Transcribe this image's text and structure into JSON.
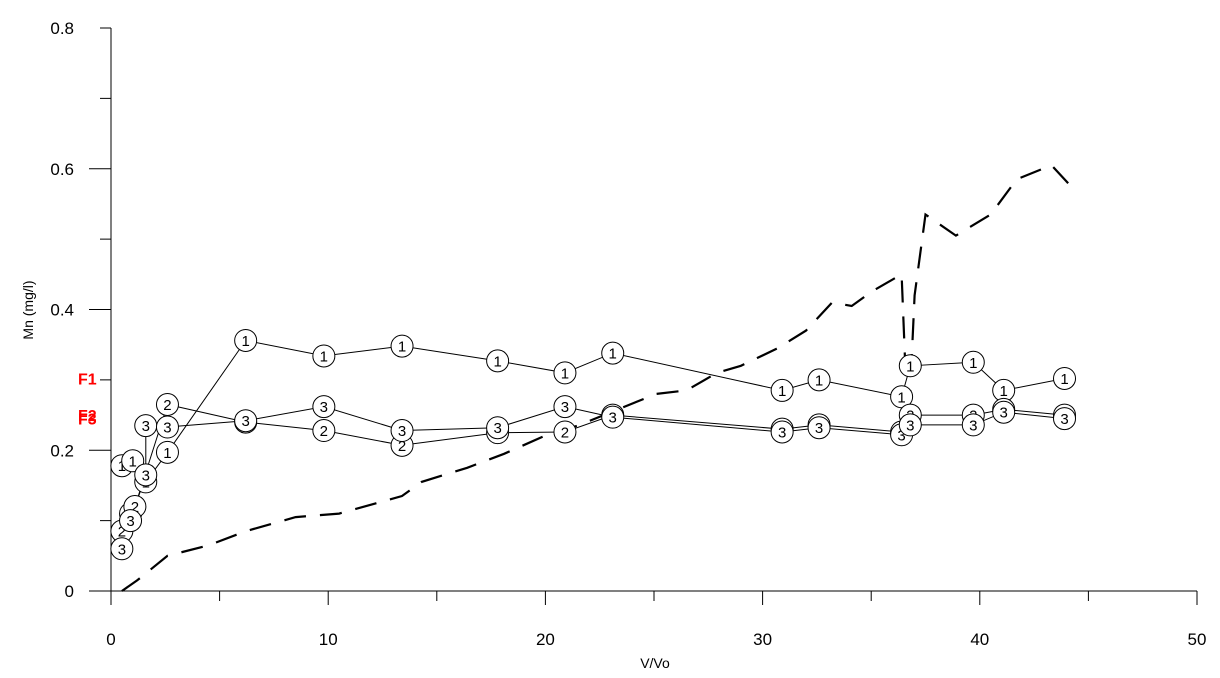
{
  "chart_data": {
    "type": "line",
    "title": "",
    "xlabel": "V/Vo",
    "ylabel": "Mn (mg/l)",
    "xlim": [
      0,
      50
    ],
    "ylim": [
      0,
      0.8
    ],
    "x_ticks": [
      0,
      10,
      20,
      30,
      40,
      50
    ],
    "y_ticks": [
      0,
      0.2,
      0.4,
      0.6,
      0.8
    ],
    "x_tick_labels": [
      "0",
      "10",
      "20",
      "30",
      "40",
      "50"
    ],
    "y_tick_labels": [
      "0",
      "0.2",
      "0.4",
      "0.6",
      "0.8"
    ],
    "grid": false,
    "series": [
      {
        "name": "F1",
        "marker": "1",
        "color": "#000000",
        "label_color": "#ff0000",
        "line_style": "solid",
        "points": [
          [
            0.5,
            0.178
          ],
          [
            1.0,
            0.185
          ],
          [
            1.6,
            0.155
          ],
          [
            2.6,
            0.197
          ],
          [
            6.2,
            0.356
          ],
          [
            9.8,
            0.334
          ],
          [
            13.4,
            0.348
          ],
          [
            17.8,
            0.327
          ],
          [
            20.9,
            0.31
          ],
          [
            23.1,
            0.338
          ],
          [
            30.9,
            0.285
          ],
          [
            32.6,
            0.3
          ],
          [
            36.4,
            0.276
          ],
          [
            36.8,
            0.32
          ],
          [
            39.7,
            0.325
          ],
          [
            41.1,
            0.285
          ],
          [
            43.9,
            0.302
          ]
        ]
      },
      {
        "name": "F2",
        "marker": "2",
        "color": "#000000",
        "label_color": "#ff0000",
        "line_style": "solid",
        "points": [
          [
            0.5,
            0.085
          ],
          [
            0.9,
            0.11
          ],
          [
            1.1,
            0.12
          ],
          [
            2.6,
            0.265
          ],
          [
            6.2,
            0.24
          ],
          [
            9.8,
            0.228
          ],
          [
            13.4,
            0.207
          ],
          [
            17.8,
            0.225
          ],
          [
            20.9,
            0.226
          ],
          [
            23.1,
            0.25
          ],
          [
            30.9,
            0.23
          ],
          [
            32.6,
            0.236
          ],
          [
            36.4,
            0.226
          ],
          [
            36.8,
            0.25
          ],
          [
            39.7,
            0.25
          ],
          [
            41.1,
            0.258
          ],
          [
            43.9,
            0.25
          ]
        ]
      },
      {
        "name": "F3",
        "marker": "3",
        "color": "#000000",
        "label_color": "#ff0000",
        "line_style": "solid",
        "points": [
          [
            0.5,
            0.06
          ],
          [
            0.9,
            0.1
          ],
          [
            1.6,
            0.165
          ],
          [
            1.6,
            0.235
          ],
          [
            2.6,
            0.233
          ],
          [
            6.2,
            0.242
          ],
          [
            9.8,
            0.262
          ],
          [
            13.4,
            0.228
          ],
          [
            17.8,
            0.232
          ],
          [
            20.9,
            0.262
          ],
          [
            23.1,
            0.247
          ],
          [
            30.9,
            0.226
          ],
          [
            32.6,
            0.232
          ],
          [
            36.4,
            0.222
          ],
          [
            36.8,
            0.236
          ],
          [
            39.7,
            0.236
          ],
          [
            41.1,
            0.254
          ],
          [
            43.9,
            0.245
          ]
        ]
      },
      {
        "name": "",
        "marker": "",
        "color": "#000000",
        "line_style": "dashed",
        "points": [
          [
            0.5,
            0.0
          ],
          [
            1.2,
            0.015
          ],
          [
            1.8,
            0.03
          ],
          [
            2.6,
            0.05
          ],
          [
            4.5,
            0.065
          ],
          [
            6.2,
            0.085
          ],
          [
            8.5,
            0.105
          ],
          [
            10.5,
            0.11
          ],
          [
            13.4,
            0.135
          ],
          [
            14.3,
            0.155
          ],
          [
            16.4,
            0.175
          ],
          [
            18.1,
            0.195
          ],
          [
            20.3,
            0.225
          ],
          [
            21.5,
            0.235
          ],
          [
            23.1,
            0.255
          ],
          [
            25.1,
            0.28
          ],
          [
            26.5,
            0.285
          ],
          [
            27.9,
            0.31
          ],
          [
            29.0,
            0.32
          ],
          [
            30.7,
            0.345
          ],
          [
            32.0,
            0.37
          ],
          [
            33.2,
            0.41
          ],
          [
            34.1,
            0.405
          ],
          [
            35.0,
            0.425
          ],
          [
            36.4,
            0.45
          ],
          [
            36.7,
            0.22
          ],
          [
            37.0,
            0.42
          ],
          [
            37.5,
            0.535
          ],
          [
            38.9,
            0.505
          ],
          [
            40.5,
            0.535
          ],
          [
            41.7,
            0.585
          ],
          [
            43.3,
            0.605
          ],
          [
            44.5,
            0.565
          ]
        ]
      }
    ]
  }
}
